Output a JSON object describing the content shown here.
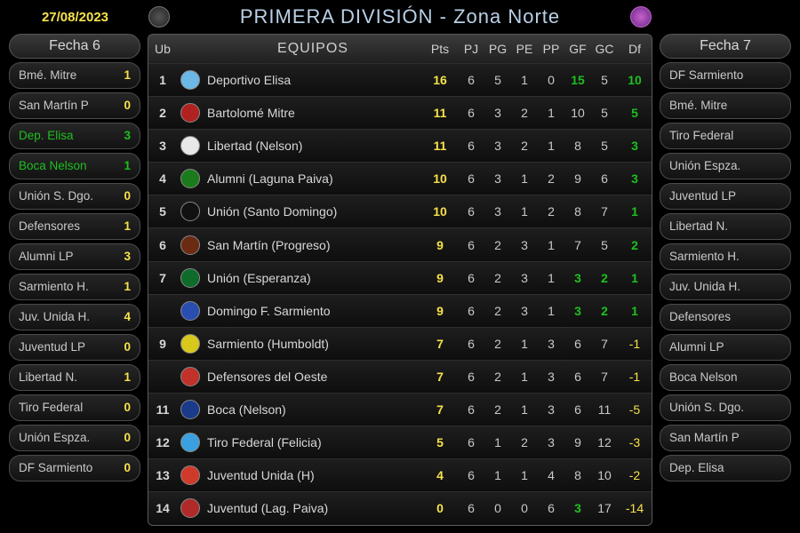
{
  "meta": {
    "date": "27/08/2023",
    "title": "PRIMERA DIVISIÓN - Zona Norte"
  },
  "colors": {
    "accent_yellow": "#f7e24a",
    "accent_green": "#1fbf1f",
    "title_blue": "#b9d0e6",
    "text": "#c9c9c9",
    "bg": "#000000"
  },
  "left_panel": {
    "title": "Fecha 6",
    "matches": [
      {
        "home": "Bmé. Mitre",
        "hs": "1",
        "away": "San Martín P",
        "as": "0",
        "hl": false
      },
      {
        "home": "Dep. Elisa",
        "hs": "3",
        "away": "Boca Nelson",
        "as": "1",
        "hl": true
      },
      {
        "home": "Unión S. Dgo.",
        "hs": "0",
        "away": "Defensores",
        "as": "1",
        "hl": false
      },
      {
        "home": "Alumni LP",
        "hs": "3",
        "away": "Sarmiento H.",
        "as": "1",
        "hl": false
      },
      {
        "home": "Juv. Unida H.",
        "hs": "4",
        "away": "Juventud LP",
        "as": "0",
        "hl": false
      },
      {
        "home": "Libertad N.",
        "hs": "1",
        "away": "Tiro Federal",
        "as": "0",
        "hl": false
      },
      {
        "home": "Unión Espza.",
        "hs": "0",
        "away": "DF Sarmiento",
        "as": "0",
        "hl": false
      }
    ]
  },
  "right_panel": {
    "title": "Fecha 7",
    "fixtures": [
      {
        "home": "DF Sarmiento",
        "away": "Bmé. Mitre"
      },
      {
        "home": "Tiro Federal",
        "away": "Unión Espza."
      },
      {
        "home": "Juventud LP",
        "away": "Libertad N."
      },
      {
        "home": "Sarmiento H.",
        "away": "Juv. Unida H."
      },
      {
        "home": "Defensores",
        "away": "Alumni LP"
      },
      {
        "home": "Boca Nelson",
        "away": "Unión S. Dgo."
      },
      {
        "home": "San Martín P",
        "away": "Dep. Elisa"
      }
    ]
  },
  "table": {
    "headers": {
      "ub": "Ub",
      "eq": "EQUIPOS",
      "pts": "Pts",
      "pj": "PJ",
      "pg": "PG",
      "pe": "PE",
      "pp": "PP",
      "gf": "GF",
      "gc": "GC",
      "df": "Df"
    },
    "rows": [
      {
        "pos": "1",
        "name": "Deportivo Elisa",
        "pts": "16",
        "pj": "6",
        "pg": "5",
        "pe": "1",
        "pp": "0",
        "gf": "15",
        "gc": "5",
        "df": "10",
        "gf_hl": true,
        "gc_hl": false,
        "df_pos": true,
        "crest": "#6bb7e6"
      },
      {
        "pos": "2",
        "name": "Bartolomé Mitre",
        "pts": "11",
        "pj": "6",
        "pg": "3",
        "pe": "2",
        "pp": "1",
        "gf": "10",
        "gc": "5",
        "df": "5",
        "gf_hl": false,
        "gc_hl": false,
        "df_pos": true,
        "crest": "#b02222"
      },
      {
        "pos": "3",
        "name": "Libertad (Nelson)",
        "pts": "11",
        "pj": "6",
        "pg": "3",
        "pe": "2",
        "pp": "1",
        "gf": "8",
        "gc": "5",
        "df": "3",
        "gf_hl": false,
        "gc_hl": false,
        "df_pos": true,
        "crest": "#e8e8e8"
      },
      {
        "pos": "4",
        "name": "Alumni (Laguna Paiva)",
        "pts": "10",
        "pj": "6",
        "pg": "3",
        "pe": "1",
        "pp": "2",
        "gf": "9",
        "gc": "6",
        "df": "3",
        "gf_hl": false,
        "gc_hl": false,
        "df_pos": true,
        "crest": "#1b7a1b"
      },
      {
        "pos": "5",
        "name": "Unión (Santo Domingo)",
        "pts": "10",
        "pj": "6",
        "pg": "3",
        "pe": "1",
        "pp": "2",
        "gf": "8",
        "gc": "7",
        "df": "1",
        "gf_hl": false,
        "gc_hl": false,
        "df_pos": true,
        "crest": "#111111"
      },
      {
        "pos": "6",
        "name": "San Martín (Progreso)",
        "pts": "9",
        "pj": "6",
        "pg": "2",
        "pe": "3",
        "pp": "1",
        "gf": "7",
        "gc": "5",
        "df": "2",
        "gf_hl": false,
        "gc_hl": false,
        "df_pos": true,
        "crest": "#6b2a12"
      },
      {
        "pos": "7",
        "name": "Unión (Esperanza)",
        "pts": "9",
        "pj": "6",
        "pg": "2",
        "pe": "3",
        "pp": "1",
        "gf": "3",
        "gc": "2",
        "df": "1",
        "gf_hl": true,
        "gc_hl": true,
        "df_pos": true,
        "crest": "#0e6b2a"
      },
      {
        "pos": "",
        "name": "Domingo F. Sarmiento",
        "pts": "9",
        "pj": "6",
        "pg": "2",
        "pe": "3",
        "pp": "1",
        "gf": "3",
        "gc": "2",
        "df": "1",
        "gf_hl": true,
        "gc_hl": true,
        "df_pos": true,
        "crest": "#2a4db0"
      },
      {
        "pos": "9",
        "name": "Sarmiento (Humboldt)",
        "pts": "7",
        "pj": "6",
        "pg": "2",
        "pe": "1",
        "pp": "3",
        "gf": "6",
        "gc": "7",
        "df": "-1",
        "gf_hl": false,
        "gc_hl": false,
        "df_pos": false,
        "crest": "#d8c81b"
      },
      {
        "pos": "",
        "name": "Defensores del Oeste",
        "pts": "7",
        "pj": "6",
        "pg": "2",
        "pe": "1",
        "pp": "3",
        "gf": "6",
        "gc": "7",
        "df": "-1",
        "gf_hl": false,
        "gc_hl": false,
        "df_pos": false,
        "crest": "#c0322a"
      },
      {
        "pos": "11",
        "name": "Boca (Nelson)",
        "pts": "7",
        "pj": "6",
        "pg": "2",
        "pe": "1",
        "pp": "3",
        "gf": "6",
        "gc": "11",
        "df": "-5",
        "gf_hl": false,
        "gc_hl": false,
        "df_pos": false,
        "crest": "#1a3a8a"
      },
      {
        "pos": "12",
        "name": "Tiro Federal (Felicia)",
        "pts": "5",
        "pj": "6",
        "pg": "1",
        "pe": "2",
        "pp": "3",
        "gf": "9",
        "gc": "12",
        "df": "-3",
        "gf_hl": false,
        "gc_hl": false,
        "df_pos": false,
        "crest": "#3aa0e0"
      },
      {
        "pos": "13",
        "name": "Juventud Unida (H)",
        "pts": "4",
        "pj": "6",
        "pg": "1",
        "pe": "1",
        "pp": "4",
        "gf": "8",
        "gc": "10",
        "df": "-2",
        "gf_hl": false,
        "gc_hl": false,
        "df_pos": false,
        "crest": "#d03a2a"
      },
      {
        "pos": "14",
        "name": "Juventud (Lag. Paiva)",
        "pts": "0",
        "pj": "6",
        "pg": "0",
        "pe": "0",
        "pp": "6",
        "gf": "3",
        "gc": "17",
        "df": "-14",
        "gf_hl": true,
        "gc_hl": false,
        "df_pos": false,
        "crest": "#b02a2a"
      }
    ]
  }
}
